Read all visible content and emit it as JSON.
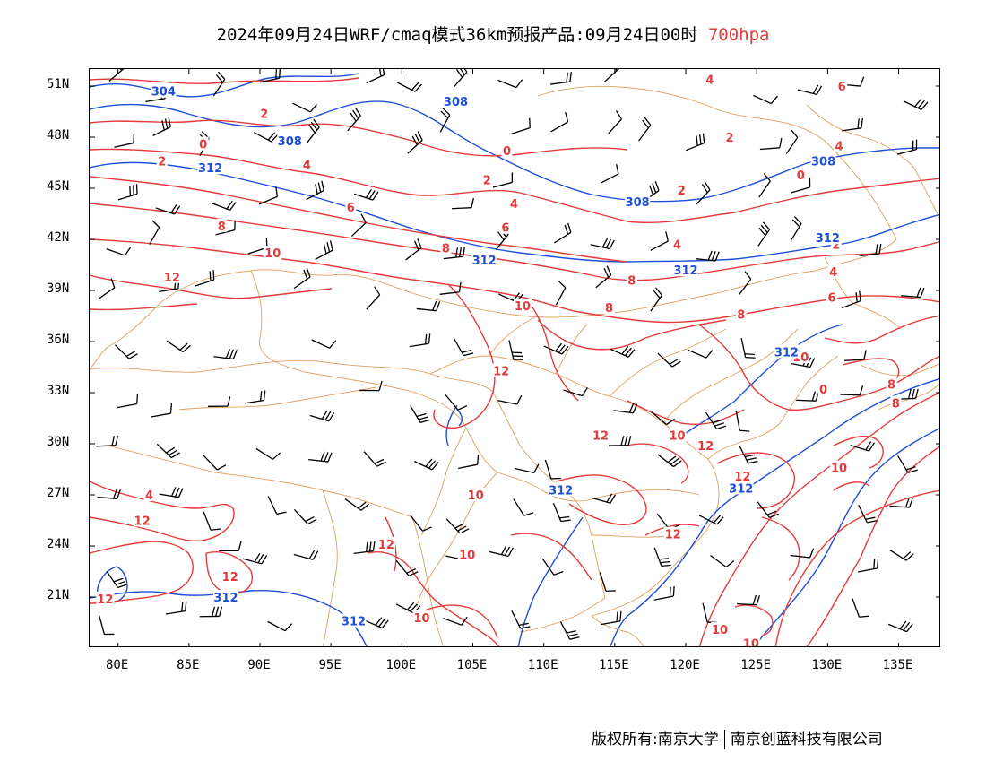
{
  "title": {
    "main": "2024年09月24日WRF/cmaq模式36km预报产品:09月24日00时",
    "level": "700hpa"
  },
  "colors": {
    "temperature": "#e33b3b",
    "height": "#1f4fd6",
    "border": "#e0a060",
    "wind": "#000000"
  },
  "axes": {
    "lat_labels": [
      "51N",
      "48N",
      "45N",
      "42N",
      "39N",
      "36N",
      "33N",
      "30N",
      "27N",
      "24N",
      "21N"
    ],
    "lon_labels": [
      "80E",
      "85E",
      "90E",
      "95E",
      "100E",
      "105E",
      "110E",
      "115E",
      "120E",
      "125E",
      "130E",
      "135E"
    ]
  },
  "temperature_labels": [
    {
      "text": "2",
      "lon": 90.3,
      "lat": 49.4
    },
    {
      "text": "0",
      "lon": 86.0,
      "lat": 47.6
    },
    {
      "text": "2",
      "lon": 83.1,
      "lat": 46.6
    },
    {
      "text": "4",
      "lon": 93.3,
      "lat": 46.4
    },
    {
      "text": "6",
      "lon": 96.4,
      "lat": 43.9
    },
    {
      "text": "8",
      "lon": 87.3,
      "lat": 42.8
    },
    {
      "text": "10",
      "lon": 90.9,
      "lat": 41.2
    },
    {
      "text": "12",
      "lon": 83.8,
      "lat": 39.8
    },
    {
      "text": "8",
      "lon": 103.1,
      "lat": 41.5
    },
    {
      "text": "0",
      "lon": 107.4,
      "lat": 47.2
    },
    {
      "text": "2",
      "lon": 106.0,
      "lat": 45.5
    },
    {
      "text": "4",
      "lon": 107.9,
      "lat": 44.1
    },
    {
      "text": "6",
      "lon": 107.3,
      "lat": 42.7
    },
    {
      "text": "4",
      "lon": 121.7,
      "lat": 51.4
    },
    {
      "text": "6",
      "lon": 131.0,
      "lat": 51.0
    },
    {
      "text": "2",
      "lon": 123.1,
      "lat": 48.0
    },
    {
      "text": "4",
      "lon": 130.8,
      "lat": 47.5
    },
    {
      "text": "0",
      "lon": 128.1,
      "lat": 45.8
    },
    {
      "text": "2",
      "lon": 119.7,
      "lat": 44.9
    },
    {
      "text": "4",
      "lon": 119.4,
      "lat": 41.7
    },
    {
      "text": "2",
      "lon": 130.6,
      "lat": 41.7
    },
    {
      "text": "4",
      "lon": 130.4,
      "lat": 40.1
    },
    {
      "text": "6",
      "lon": 130.3,
      "lat": 38.6
    },
    {
      "text": "8",
      "lon": 116.2,
      "lat": 39.6
    },
    {
      "text": "8",
      "lon": 114.6,
      "lat": 38.0
    },
    {
      "text": "8",
      "lon": 123.9,
      "lat": 37.6
    },
    {
      "text": "10",
      "lon": 108.5,
      "lat": 38.1
    },
    {
      "text": "12",
      "lon": 107.0,
      "lat": 34.3
    },
    {
      "text": "10",
      "lon": 128.1,
      "lat": 35.1
    },
    {
      "text": "8",
      "lon": 134.5,
      "lat": 33.5
    },
    {
      "text": "8",
      "lon": 134.8,
      "lat": 32.4
    },
    {
      "text": "0",
      "lon": 129.7,
      "lat": 33.2
    },
    {
      "text": "10",
      "lon": 119.4,
      "lat": 30.5
    },
    {
      "text": "12",
      "lon": 114.0,
      "lat": 30.5
    },
    {
      "text": "12",
      "lon": 121.4,
      "lat": 29.9
    },
    {
      "text": "12",
      "lon": 124.0,
      "lat": 28.1
    },
    {
      "text": "10",
      "lon": 130.8,
      "lat": 28.6
    },
    {
      "text": "10",
      "lon": 105.2,
      "lat": 27.0
    },
    {
      "text": "4",
      "lon": 82.2,
      "lat": 27.0
    },
    {
      "text": "12",
      "lon": 81.7,
      "lat": 25.5
    },
    {
      "text": "12",
      "lon": 98.9,
      "lat": 24.1
    },
    {
      "text": "10",
      "lon": 104.6,
      "lat": 23.5
    },
    {
      "text": "12",
      "lon": 87.9,
      "lat": 22.2
    },
    {
      "text": "12",
      "lon": 119.1,
      "lat": 24.7
    },
    {
      "text": "12",
      "lon": 79.1,
      "lat": 20.9
    },
    {
      "text": "10",
      "lon": 101.4,
      "lat": 19.8
    },
    {
      "text": "10",
      "lon": 122.4,
      "lat": 19.1
    },
    {
      "text": "10",
      "lon": 124.6,
      "lat": 18.3
    }
  ],
  "height_labels": [
    {
      "text": "304",
      "lon": 83.2,
      "lat": 50.7
    },
    {
      "text": "308",
      "lon": 103.8,
      "lat": 50.1
    },
    {
      "text": "308",
      "lon": 92.1,
      "lat": 47.8
    },
    {
      "text": "312",
      "lon": 86.5,
      "lat": 46.2
    },
    {
      "text": "308",
      "lon": 116.6,
      "lat": 44.2
    },
    {
      "text": "308",
      "lon": 129.7,
      "lat": 46.6
    },
    {
      "text": "312",
      "lon": 105.8,
      "lat": 40.8
    },
    {
      "text": "312",
      "lon": 120.0,
      "lat": 40.2
    },
    {
      "text": "312",
      "lon": 130.0,
      "lat": 42.1
    },
    {
      "text": "312",
      "lon": 127.1,
      "lat": 35.4
    },
    {
      "text": "312",
      "lon": 111.2,
      "lat": 27.3
    },
    {
      "text": "312",
      "lon": 123.9,
      "lat": 27.4
    },
    {
      "text": "312",
      "lon": 87.6,
      "lat": 21.0
    },
    {
      "text": "312",
      "lon": 96.6,
      "lat": 19.6
    }
  ],
  "credit": {
    "left": "版权所有:南京大学",
    "right": "南京创蓝科技有限公司"
  }
}
